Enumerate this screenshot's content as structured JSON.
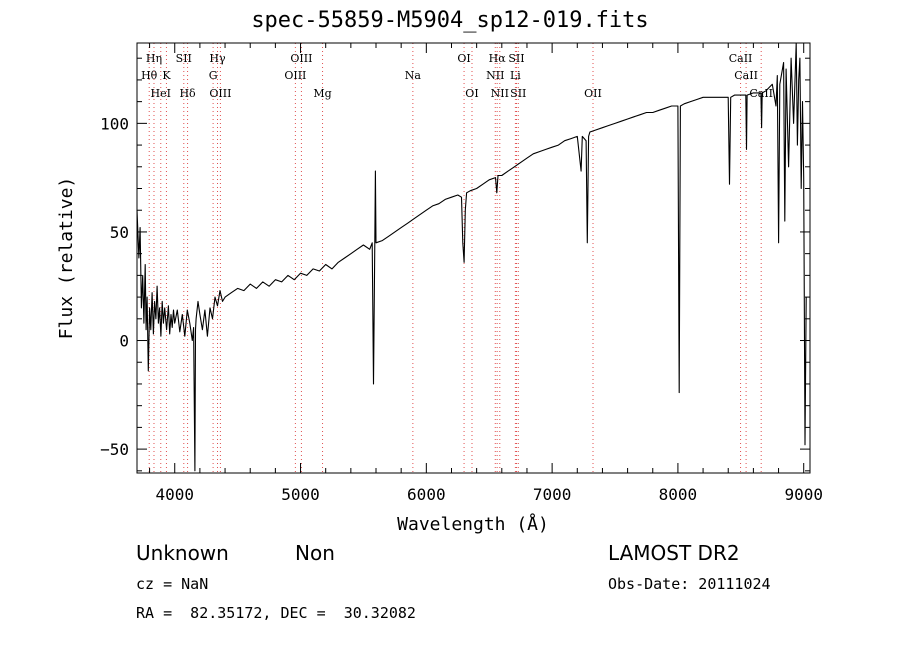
{
  "chart_data": {
    "type": "line",
    "title": "spec-55859-M5904_sp12-019.fits",
    "xlabel": "Wavelength (Å)",
    "ylabel": "Flux (relative)",
    "xlim": [
      3700,
      9050
    ],
    "ylim": [
      -61,
      137
    ],
    "x_ticks": [
      4000,
      5000,
      6000,
      7000,
      8000,
      9000
    ],
    "y_ticks": [
      -50,
      0,
      50,
      100
    ],
    "grid": false,
    "series": [
      {
        "values": [
          [
            3700,
            60
          ],
          [
            3715,
            38
          ],
          [
            3725,
            52
          ],
          [
            3735,
            15
          ],
          [
            3745,
            30
          ],
          [
            3755,
            8
          ],
          [
            3765,
            35
          ],
          [
            3772,
            5
          ],
          [
            3780,
            20
          ],
          [
            3790,
            -14
          ],
          [
            3800,
            15
          ],
          [
            3810,
            5
          ],
          [
            3820,
            22
          ],
          [
            3830,
            3
          ],
          [
            3840,
            18
          ],
          [
            3850,
            10
          ],
          [
            3860,
            25
          ],
          [
            3870,
            8
          ],
          [
            3880,
            15
          ],
          [
            3890,
            2
          ],
          [
            3900,
            18
          ],
          [
            3910,
            8
          ],
          [
            3920,
            15
          ],
          [
            3935,
            5
          ],
          [
            3950,
            16
          ],
          [
            3960,
            3
          ],
          [
            3970,
            12
          ],
          [
            3980,
            6
          ],
          [
            3990,
            14
          ],
          [
            4000,
            8
          ],
          [
            4020,
            14
          ],
          [
            4040,
            4
          ],
          [
            4060,
            12
          ],
          [
            4080,
            2
          ],
          [
            4100,
            14
          ],
          [
            4120,
            8
          ],
          [
            4140,
            0
          ],
          [
            4150,
            6
          ],
          [
            4160,
            -60
          ],
          [
            4165,
            5
          ],
          [
            4170,
            10
          ],
          [
            4185,
            18
          ],
          [
            4200,
            12
          ],
          [
            4220,
            5
          ],
          [
            4240,
            14
          ],
          [
            4260,
            2
          ],
          [
            4280,
            15
          ],
          [
            4300,
            10
          ],
          [
            4320,
            20
          ],
          [
            4340,
            16
          ],
          [
            4360,
            23
          ],
          [
            4380,
            18
          ],
          [
            4400,
            20
          ],
          [
            4450,
            22
          ],
          [
            4500,
            24
          ],
          [
            4550,
            23
          ],
          [
            4600,
            26
          ],
          [
            4650,
            24
          ],
          [
            4700,
            27
          ],
          [
            4750,
            25
          ],
          [
            4800,
            28
          ],
          [
            4850,
            27
          ],
          [
            4900,
            30
          ],
          [
            4950,
            28
          ],
          [
            5000,
            31
          ],
          [
            5050,
            30
          ],
          [
            5100,
            33
          ],
          [
            5150,
            32
          ],
          [
            5200,
            35
          ],
          [
            5250,
            33
          ],
          [
            5300,
            36
          ],
          [
            5350,
            38
          ],
          [
            5400,
            40
          ],
          [
            5450,
            42
          ],
          [
            5500,
            44
          ],
          [
            5550,
            42
          ],
          [
            5570,
            45
          ],
          [
            5580,
            -20
          ],
          [
            5590,
            45
          ],
          [
            5595,
            78
          ],
          [
            5600,
            45
          ],
          [
            5650,
            46
          ],
          [
            5700,
            48
          ],
          [
            5750,
            50
          ],
          [
            5800,
            52
          ],
          [
            5850,
            54
          ],
          [
            5900,
            56
          ],
          [
            5950,
            58
          ],
          [
            6000,
            60
          ],
          [
            6050,
            62
          ],
          [
            6100,
            63
          ],
          [
            6150,
            65
          ],
          [
            6200,
            66
          ],
          [
            6250,
            67
          ],
          [
            6280,
            66
          ],
          [
            6290,
            45
          ],
          [
            6300,
            36
          ],
          [
            6310,
            60
          ],
          [
            6320,
            68
          ],
          [
            6350,
            69
          ],
          [
            6400,
            70
          ],
          [
            6450,
            72
          ],
          [
            6500,
            74
          ],
          [
            6550,
            75
          ],
          [
            6560,
            68
          ],
          [
            6570,
            76
          ],
          [
            6600,
            76
          ],
          [
            6650,
            78
          ],
          [
            6700,
            80
          ],
          [
            6750,
            82
          ],
          [
            6800,
            84
          ],
          [
            6850,
            86
          ],
          [
            6900,
            87
          ],
          [
            6950,
            88
          ],
          [
            7000,
            89
          ],
          [
            7050,
            90
          ],
          [
            7100,
            92
          ],
          [
            7150,
            93
          ],
          [
            7200,
            94
          ],
          [
            7230,
            78
          ],
          [
            7240,
            94
          ],
          [
            7270,
            92
          ],
          [
            7280,
            45
          ],
          [
            7290,
            94
          ],
          [
            7300,
            96
          ],
          [
            7350,
            97
          ],
          [
            7400,
            98
          ],
          [
            7450,
            99
          ],
          [
            7500,
            100
          ],
          [
            7550,
            101
          ],
          [
            7600,
            102
          ],
          [
            7650,
            103
          ],
          [
            7700,
            104
          ],
          [
            7750,
            105
          ],
          [
            7800,
            105
          ],
          [
            7850,
            106
          ],
          [
            7900,
            107
          ],
          [
            7950,
            108
          ],
          [
            8000,
            108
          ],
          [
            8010,
            -24
          ],
          [
            8020,
            108
          ],
          [
            8050,
            109
          ],
          [
            8100,
            110
          ],
          [
            8150,
            111
          ],
          [
            8200,
            112
          ],
          [
            8250,
            112
          ],
          [
            8300,
            112
          ],
          [
            8350,
            112
          ],
          [
            8400,
            112
          ],
          [
            8410,
            72
          ],
          [
            8420,
            112
          ],
          [
            8450,
            113
          ],
          [
            8500,
            113
          ],
          [
            8540,
            113
          ],
          [
            8545,
            88
          ],
          [
            8550,
            113
          ],
          [
            8600,
            114
          ],
          [
            8660,
            114
          ],
          [
            8665,
            98
          ],
          [
            8670,
            114
          ],
          [
            8700,
            115
          ],
          [
            8750,
            118
          ],
          [
            8780,
            108
          ],
          [
            8790,
            122
          ],
          [
            8800,
            45
          ],
          [
            8810,
            118
          ],
          [
            8840,
            128
          ],
          [
            8850,
            55
          ],
          [
            8860,
            125
          ],
          [
            8880,
            80
          ],
          [
            8900,
            130
          ],
          [
            8920,
            100
          ],
          [
            8940,
            137
          ],
          [
            8950,
            90
          ],
          [
            8960,
            120
          ],
          [
            8970,
            130
          ],
          [
            8980,
            70
          ],
          [
            8990,
            110
          ],
          [
            9000,
            75
          ],
          [
            9010,
            -48
          ],
          [
            9020,
            20
          ]
        ]
      }
    ],
    "line_markers": [
      {
        "label": "Hη",
        "x": 3835,
        "row": 1
      },
      {
        "label": "Hθ",
        "x": 3797,
        "row": 2
      },
      {
        "label": "HeI",
        "x": 3889,
        "row": 3
      },
      {
        "label": "K",
        "x": 3934,
        "row": 2
      },
      {
        "label": "SII",
        "x": 4072,
        "row": 1
      },
      {
        "label": "Hδ",
        "x": 4102,
        "row": 3
      },
      {
        "label": "Hγ",
        "x": 4340,
        "row": 1
      },
      {
        "label": "G",
        "x": 4305,
        "row": 2
      },
      {
        "label": "OIII",
        "x": 4363,
        "row": 3
      },
      {
        "label": "OIII",
        "x": 5007,
        "row": 1
      },
      {
        "label": "OIII",
        "x": 4959,
        "row": 2
      },
      {
        "label": "Mg",
        "x": 5175,
        "row": 3
      },
      {
        "label": "Na",
        "x": 5893,
        "row": 2
      },
      {
        "label": "OI",
        "x": 6300,
        "row": 1
      },
      {
        "label": "OI",
        "x": 6363,
        "row": 3
      },
      {
        "label": "Hα",
        "x": 6563,
        "row": 1
      },
      {
        "label": "NII",
        "x": 6548,
        "row": 2
      },
      {
        "label": "NII",
        "x": 6584,
        "row": 3
      },
      {
        "label": "SII",
        "x": 6717,
        "row": 1
      },
      {
        "label": "Li",
        "x": 6708,
        "row": 2
      },
      {
        "label": "SII",
        "x": 6731,
        "row": 3
      },
      {
        "label": "OII",
        "x": 7325,
        "row": 3
      },
      {
        "label": "CaII",
        "x": 8498,
        "row": 1
      },
      {
        "label": "CaII",
        "x": 8542,
        "row": 2
      },
      {
        "label": "CaII",
        "x": 8662,
        "row": 3
      }
    ]
  },
  "footer": {
    "object_class": "Unknown",
    "subclass": "Non",
    "redshift": "cz = NaN",
    "coordinates": "RA =  82.35172, DEC =  30.32082",
    "survey": "LAMOST DR2",
    "obs_date": "Obs-Date: 20111024"
  },
  "colors": {
    "axes": "#000000",
    "spectrum": "#000000",
    "line_marker": "#e05050"
  }
}
